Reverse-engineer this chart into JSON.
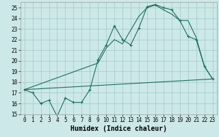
{
  "xlabel": "Humidex (Indice chaleur)",
  "background_color": "#cce8e8",
  "grid_color": "#aacccc",
  "line_color": "#1a6b5a",
  "xlim": [
    -0.5,
    23.5
  ],
  "ylim": [
    15,
    25.5
  ],
  "xticks": [
    0,
    1,
    2,
    3,
    4,
    5,
    6,
    7,
    8,
    9,
    10,
    11,
    12,
    13,
    14,
    15,
    16,
    17,
    18,
    19,
    20,
    21,
    22,
    23
  ],
  "yticks": [
    15,
    16,
    17,
    18,
    19,
    20,
    21,
    22,
    23,
    24,
    25
  ],
  "series1_x": [
    0,
    1,
    2,
    3,
    4,
    5,
    6,
    7,
    8,
    9,
    10,
    11,
    12,
    13,
    14,
    15,
    16,
    17,
    18,
    19,
    20,
    21,
    22,
    23
  ],
  "series1_y": [
    17.3,
    17.0,
    16.0,
    16.3,
    14.8,
    16.5,
    16.1,
    16.1,
    17.3,
    20.1,
    21.5,
    23.3,
    22.0,
    21.5,
    23.1,
    25.1,
    25.3,
    25.0,
    24.8,
    23.8,
    22.3,
    22.0,
    19.5,
    18.3
  ],
  "series2_x": [
    0,
    23
  ],
  "series2_y": [
    17.3,
    18.3
  ],
  "series3_x": [
    0,
    9,
    10,
    11,
    12,
    13,
    14,
    15,
    16,
    17,
    18,
    19,
    20,
    21,
    22,
    23
  ],
  "series3_y": [
    17.3,
    19.8,
    21.2,
    22.0,
    21.6,
    22.9,
    24.2,
    25.0,
    25.25,
    24.8,
    24.4,
    23.8,
    23.8,
    22.2,
    19.5,
    18.3
  ],
  "xlabel_fontsize": 7,
  "tick_fontsize": 5.5
}
